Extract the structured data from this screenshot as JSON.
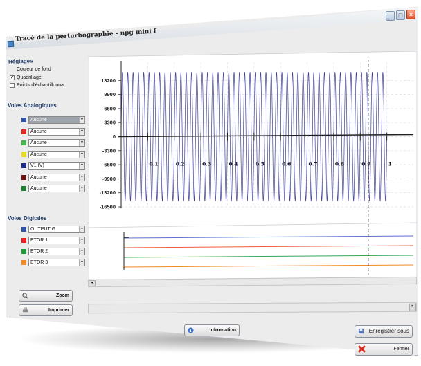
{
  "window": {
    "title": "Tracé de la perturbographie - npg mini f"
  },
  "settings": {
    "title": "Réglages",
    "items": [
      {
        "label": "Couleur de fond",
        "checked": false
      },
      {
        "label": "Quadrillage",
        "checked": true
      },
      {
        "label": "Points d'échantillonna",
        "checked": false
      }
    ]
  },
  "analog": {
    "title": "Voies Analogiques",
    "channels": [
      {
        "color": "#2f54a8",
        "value": "Aucune",
        "dim": true
      },
      {
        "color": "#e52620",
        "value": "Aucune",
        "dim": false
      },
      {
        "color": "#44b548",
        "value": "Aucune",
        "dim": false
      },
      {
        "color": "#e6dc1e",
        "value": "Aucune",
        "dim": false
      },
      {
        "color": "#1f2a8e",
        "value": "V1 (V)",
        "dim": false
      },
      {
        "color": "#6e1212",
        "value": "Aucune",
        "dim": false
      },
      {
        "color": "#1e7d34",
        "value": "Aucune",
        "dim": false
      }
    ]
  },
  "digital": {
    "title": "Voies Digitales",
    "channels": [
      {
        "color": "#2f54a8",
        "value": "OUTPUT G"
      },
      {
        "color": "#e52620",
        "value": "ETOR 1"
      },
      {
        "color": "#1e9a3a",
        "value": "ETOR 2"
      },
      {
        "color": "#f08a1e",
        "value": "ETOR 3"
      }
    ]
  },
  "buttons": {
    "zoom": "Zoom",
    "print": "Imprimer",
    "info": "Information",
    "save_as": "Enregistrer sous",
    "close": "Fermer"
  },
  "chart_data": {
    "type": "line",
    "series": [
      {
        "name": "V1 (V)",
        "x_range": [
          0,
          1
        ],
        "amplitude": 16500,
        "cycles": 50
      }
    ],
    "y_ticks": [
      "13200",
      "9900",
      "6600",
      "3300",
      "0",
      "-3300",
      "-6600",
      "-9900",
      "-13200",
      "-16500"
    ],
    "x_ticks": [
      "0.1",
      "0.2",
      "0.3",
      "0.4",
      "0.5",
      "0.6",
      "0.7",
      "0.8",
      "0.9",
      "1"
    ],
    "ylim": [
      -16500,
      16500
    ],
    "xlim": [
      0,
      1.1
    ],
    "cursor_x": 0.93,
    "grid": true,
    "digital_traces": [
      {
        "name": "OUTPUT G",
        "color": "#5b6fd0"
      },
      {
        "name": "ETOR 1",
        "color": "#ef5a3c"
      },
      {
        "name": "ETOR 2",
        "color": "#34a853"
      },
      {
        "name": "ETOR 3",
        "color": "#f08a1e"
      }
    ]
  }
}
